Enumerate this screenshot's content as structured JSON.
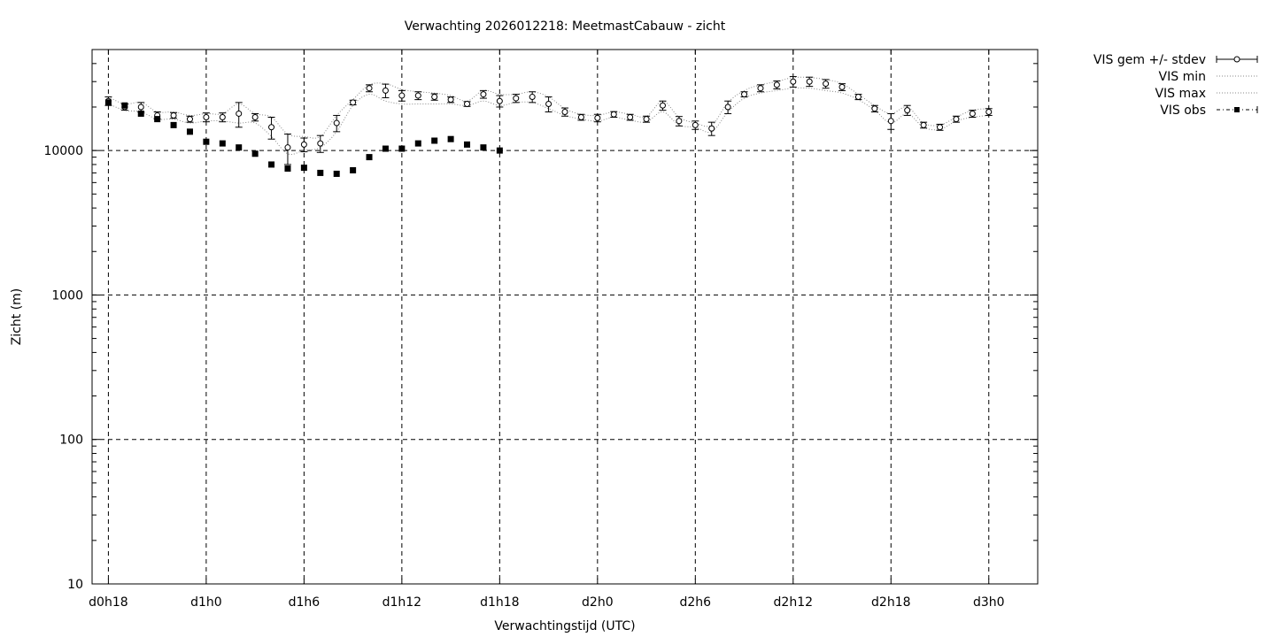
{
  "chart_data": {
    "type": "scatter",
    "title": "Verwachting 2026012218: MeetmastCabauw - zicht",
    "xlabel": "Verwachtingstijd (UTC)",
    "ylabel": "Zicht (m)",
    "y_scale": "log",
    "ylim": [
      10,
      50000
    ],
    "xlim": [
      -1,
      57
    ],
    "x_unit": "hours since d0h18",
    "grid": true,
    "legend_position": "top-right, outside plot",
    "x_ticks": [
      {
        "x": 0,
        "label": "d0h18"
      },
      {
        "x": 6,
        "label": "d1h0"
      },
      {
        "x": 12,
        "label": "d1h6"
      },
      {
        "x": 18,
        "label": "d1h12"
      },
      {
        "x": 24,
        "label": "d1h18"
      },
      {
        "x": 30,
        "label": "d2h0"
      },
      {
        "x": 36,
        "label": "d2h6"
      },
      {
        "x": 42,
        "label": "d2h12"
      },
      {
        "x": 48,
        "label": "d2h18"
      },
      {
        "x": 54,
        "label": "d3h0"
      }
    ],
    "y_ticks": [
      {
        "y": 10,
        "label": "10"
      },
      {
        "y": 100,
        "label": "100"
      },
      {
        "y": 1000,
        "label": "1000"
      },
      {
        "y": 10000,
        "label": "10000"
      }
    ],
    "series": [
      {
        "name": "VIS gem +/- stdev",
        "style": "open-circle-errorbar",
        "x": [
          0,
          1,
          2,
          3,
          4,
          5,
          6,
          7,
          8,
          9,
          10,
          11,
          12,
          13,
          14,
          15,
          16,
          17,
          18,
          19,
          20,
          21,
          22,
          23,
          24,
          25,
          26,
          27,
          28,
          29,
          30,
          31,
          32,
          33,
          34,
          35,
          36,
          37,
          38,
          39,
          40,
          41,
          42,
          43,
          44,
          45,
          46,
          47,
          48,
          49,
          50,
          51,
          52,
          53,
          54
        ],
        "y": [
          22000,
          20000,
          20000,
          17500,
          17500,
          16500,
          17000,
          17000,
          18000,
          17000,
          14500,
          10500,
          11000,
          11200,
          15500,
          21500,
          27000,
          26000,
          24000,
          24000,
          23500,
          22500,
          21000,
          24500,
          22000,
          23000,
          23500,
          21000,
          18500,
          17000,
          16800,
          17800,
          17000,
          16500,
          20500,
          16000,
          15000,
          14200,
          20000,
          24500,
          27000,
          28500,
          30000,
          30000,
          29000,
          27500,
          23500,
          19500,
          16000,
          19000,
          15000,
          14500,
          16500,
          18000,
          18500
        ],
        "err": [
          1500,
          1000,
          1500,
          1000,
          800,
          800,
          1200,
          1200,
          3500,
          1000,
          2500,
          2500,
          1200,
          1500,
          2000,
          800,
          1500,
          2800,
          2000,
          1500,
          1200,
          1000,
          800,
          1500,
          2000,
          1500,
          2000,
          2500,
          1200,
          800,
          1000,
          800,
          800,
          800,
          1500,
          1200,
          1000,
          1500,
          2000,
          1000,
          1500,
          1800,
          2500,
          2200,
          2000,
          1500,
          1000,
          1000,
          2000,
          1500,
          700,
          700,
          800,
          1000,
          1000
        ]
      },
      {
        "name": "VIS min",
        "style": "dotted-line",
        "x": [
          0,
          1,
          2,
          3,
          4,
          5,
          6,
          7,
          8,
          9,
          10,
          11,
          12,
          13,
          14,
          15,
          16,
          17,
          18,
          19,
          20,
          21,
          22,
          23,
          24,
          25,
          26,
          27,
          28,
          29,
          30,
          31,
          32,
          33,
          34,
          35,
          36,
          37,
          38,
          39,
          40,
          41,
          42,
          43,
          44,
          45,
          46,
          47,
          48,
          49,
          50,
          51,
          52,
          53,
          54
        ],
        "y": [
          21000,
          19000,
          18500,
          16500,
          16500,
          15500,
          16000,
          16000,
          15500,
          15500,
          12500,
          9500,
          10000,
          10500,
          13500,
          20500,
          24500,
          22000,
          21000,
          21000,
          21000,
          21000,
          20500,
          22000,
          20500,
          21500,
          21500,
          19500,
          17500,
          16500,
          16000,
          17000,
          16200,
          15800,
          18500,
          15000,
          14500,
          13500,
          18500,
          23000,
          25000,
          26000,
          27000,
          27000,
          26000,
          25000,
          22500,
          19000,
          15500,
          18000,
          14500,
          14000,
          16000,
          17000,
          17500
        ]
      },
      {
        "name": "VIS max",
        "style": "dotted-line",
        "x": [
          0,
          1,
          2,
          3,
          4,
          5,
          6,
          7,
          8,
          9,
          10,
          11,
          12,
          13,
          14,
          15,
          16,
          17,
          18,
          19,
          20,
          21,
          22,
          23,
          24,
          25,
          26,
          27,
          28,
          29,
          30,
          31,
          32,
          33,
          34,
          35,
          36,
          37,
          38,
          39,
          40,
          41,
          42,
          43,
          44,
          45,
          46,
          47,
          48,
          49,
          50,
          51,
          52,
          53,
          54
        ],
        "y": [
          23500,
          21000,
          21500,
          18500,
          18500,
          17500,
          18000,
          18000,
          21000,
          18000,
          17000,
          13000,
          12500,
          12500,
          17500,
          22500,
          28500,
          29000,
          26500,
          25500,
          25000,
          24000,
          22000,
          26000,
          24500,
          24500,
          25500,
          23500,
          19500,
          17800,
          17500,
          18500,
          17800,
          17200,
          22000,
          17000,
          15500,
          15000,
          21500,
          26000,
          28500,
          30000,
          32000,
          32000,
          31000,
          29000,
          24500,
          20500,
          18000,
          20000,
          15500,
          15000,
          17000,
          19000,
          19500
        ]
      },
      {
        "name": "VIS obs",
        "style": "filled-square",
        "x": [
          0,
          1,
          2,
          3,
          4,
          5,
          6,
          7,
          8,
          9,
          10,
          11,
          12,
          13,
          14,
          15,
          16,
          17,
          18,
          19,
          20,
          21,
          22,
          23,
          24
        ],
        "y": [
          21500,
          20500,
          18000,
          16500,
          15000,
          13500,
          11500,
          11200,
          10500,
          9500,
          8000,
          7500,
          7600,
          7000,
          6900,
          7300,
          9000,
          10300,
          10300,
          11200,
          11700,
          12000,
          11000,
          10500,
          10000
        ]
      }
    ]
  }
}
